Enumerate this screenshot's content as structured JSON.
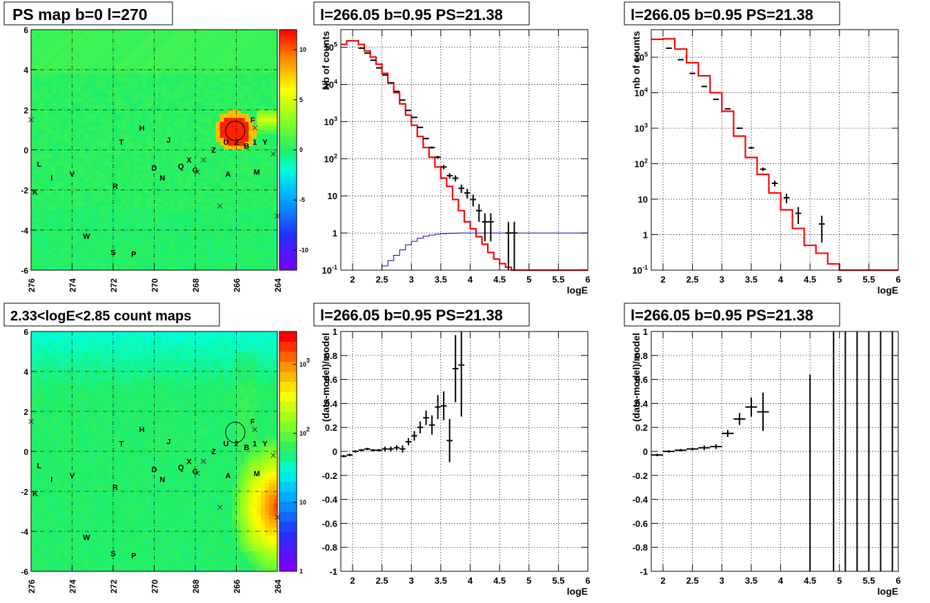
{
  "chart_data": [
    {
      "type": "heatmap",
      "title": "PS map b=0 l=270",
      "x_ticks": [
        "276",
        "274",
        "272",
        "270",
        "268",
        "266",
        "264"
      ],
      "y_ticks": [
        "6",
        "4",
        "2",
        "0",
        "-2",
        "-4",
        "-6"
      ],
      "xlim": [
        276,
        264
      ],
      "ylim": [
        -6,
        6
      ],
      "z_ticks": [
        "10",
        "5",
        "0",
        "-5",
        "-10"
      ],
      "zlim": [
        -12,
        12
      ],
      "z_scale": "linear",
      "grid": true,
      "colors": {
        "low": "#7f00ff",
        "zero": "#22ee66",
        "high": "#ff0000"
      },
      "hotspot": {
        "l": 266.05,
        "b": 0.95
      },
      "source_labels": [
        {
          "t": "L",
          "l": 275.6,
          "b": -0.7
        },
        {
          "t": "I",
          "l": 275.0,
          "b": -1.4
        },
        {
          "t": "K",
          "l": 275.8,
          "b": -2.1
        },
        {
          "t": "V",
          "l": 274.0,
          "b": -1.2
        },
        {
          "t": "T",
          "l": 271.6,
          "b": 0.4
        },
        {
          "t": "H",
          "l": 270.6,
          "b": 1.1
        },
        {
          "t": "J",
          "l": 269.3,
          "b": 0.5
        },
        {
          "t": "D",
          "l": 270.0,
          "b": -0.9
        },
        {
          "t": "N",
          "l": 269.6,
          "b": -1.4
        },
        {
          "t": "R",
          "l": 271.9,
          "b": -1.8
        },
        {
          "t": "Q",
          "l": 268.7,
          "b": -0.8
        },
        {
          "t": "X",
          "l": 268.3,
          "b": -0.5
        },
        {
          "t": "G",
          "l": 268.0,
          "b": -1.0
        },
        {
          "t": "Z",
          "l": 267.1,
          "b": 0.0
        },
        {
          "t": "U",
          "l": 266.5,
          "b": 0.4
        },
        {
          "t": "2",
          "l": 266.0,
          "b": 0.4
        },
        {
          "t": "B",
          "l": 265.5,
          "b": 0.2
        },
        {
          "t": "1",
          "l": 265.1,
          "b": 0.4
        },
        {
          "t": "Y",
          "l": 264.6,
          "b": 0.4
        },
        {
          "t": "F",
          "l": 265.2,
          "b": 1.5
        },
        {
          "t": "A",
          "l": 266.4,
          "b": -1.2
        },
        {
          "t": "M",
          "l": 265.0,
          "b": -1.1
        },
        {
          "t": "W",
          "l": 273.3,
          "b": -4.3
        },
        {
          "t": "S",
          "l": 272.0,
          "b": -5.1
        },
        {
          "t": "P",
          "l": 271.0,
          "b": -5.2
        }
      ],
      "cross_markers": [
        {
          "l": 276.0,
          "b": 1.5
        },
        {
          "l": 267.6,
          "b": -0.5
        },
        {
          "l": 267.9,
          "b": -1.1
        },
        {
          "l": 265.1,
          "b": 1.1
        },
        {
          "l": 264.2,
          "b": -0.2
        },
        {
          "l": 266.8,
          "b": -2.8
        },
        {
          "l": 264.0,
          "b": -3.3
        }
      ]
    },
    {
      "type": "line",
      "title": "l=266.05 b=0.95 PS=21.38",
      "xlabel": "logE",
      "ylabel": "Nb of counts",
      "xlim": [
        1.8,
        6
      ],
      "ylim": [
        0.1,
        300000
      ],
      "y_scale": "log",
      "x_ticks": [
        "2",
        "2.5",
        "3",
        "3.5",
        "4",
        "4.5",
        "5",
        "5.5",
        "6"
      ],
      "y_ticks": [
        "10^5",
        "10^4",
        "10^3",
        "10^2",
        "10",
        "1",
        "10^-1"
      ],
      "grid": true,
      "series": [
        {
          "color": "#ff0000",
          "kind": "step",
          "bin_width": 0.1,
          "x": [
            1.8,
            1.9,
            2.0,
            2.1,
            2.2,
            2.3,
            2.4,
            2.5,
            2.6,
            2.7,
            2.8,
            2.9,
            3.0,
            3.1,
            3.2,
            3.3,
            3.4,
            3.5,
            3.6,
            3.7,
            3.8,
            3.9,
            4.0,
            4.1,
            4.2,
            4.3,
            4.4,
            4.5,
            4.6,
            4.7,
            4.8,
            4.9,
            5.0,
            5.1,
            5.2,
            5.3,
            5.4,
            5.5,
            5.6,
            5.7,
            5.8,
            5.9
          ],
          "y": [
            120000,
            150000,
            150000,
            120000,
            80000,
            55000,
            35000,
            20000,
            11000,
            6000,
            3000,
            1500,
            800,
            400,
            200,
            110,
            60,
            30,
            18,
            8,
            4,
            2,
            1.3,
            0.8,
            0.5,
            0.3,
            0.2,
            0.15,
            0.12,
            0.1,
            0.1,
            0.1,
            0.1,
            0.1,
            0.1,
            0.1,
            0.1,
            0.1,
            0.1,
            0.1,
            0.1,
            0.1
          ]
        },
        {
          "color": "#0000cc",
          "kind": "step",
          "bin_width": 0.1,
          "x": [
            2.4,
            2.5,
            2.6,
            2.7,
            2.8,
            2.9,
            3.0,
            3.1,
            3.2,
            3.3,
            3.4,
            3.5,
            3.6,
            3.7,
            3.8,
            3.9,
            4.0,
            4.1,
            4.2,
            4.3,
            4.4,
            4.5,
            4.6,
            4.7,
            4.8,
            4.9,
            5.0,
            5.1,
            5.2,
            5.3,
            5.4,
            5.5,
            5.6,
            5.7,
            5.8,
            5.9
          ],
          "y": [
            0.1,
            0.13,
            0.18,
            0.25,
            0.35,
            0.48,
            0.6,
            0.72,
            0.82,
            0.88,
            0.93,
            0.96,
            0.98,
            0.99,
            1,
            1,
            1,
            1,
            1,
            1,
            1,
            1,
            1,
            1,
            1,
            1,
            1,
            1,
            1,
            1,
            1,
            1,
            1,
            1,
            1,
            1
          ]
        },
        {
          "color": "#000000",
          "kind": "errorbar",
          "x": [
            2.15,
            2.25,
            2.35,
            2.45,
            2.55,
            2.65,
            2.75,
            2.85,
            2.95,
            3.05,
            3.15,
            3.25,
            3.35,
            3.45,
            3.55,
            3.65,
            3.75,
            3.85,
            3.95,
            4.05,
            4.15,
            4.25,
            4.35,
            4.65,
            4.75
          ],
          "y": [
            95000,
            70000,
            45000,
            28000,
            18000,
            11000,
            6500,
            3800,
            2000,
            1300,
            700,
            350,
            200,
            110,
            60,
            35,
            30,
            16,
            12,
            8,
            4,
            2,
            2,
            1,
            1
          ],
          "err": [
            300,
            270,
            210,
            170,
            130,
            100,
            80,
            60,
            45,
            35,
            26,
            19,
            14,
            10,
            8,
            6,
            5.5,
            4,
            3.5,
            2.8,
            2,
            1.4,
            1.4,
            1,
            1
          ]
        }
      ]
    },
    {
      "type": "line",
      "title": "l=266.05 b=0.95 PS=21.38",
      "xlabel": "logE",
      "ylabel": "nb of counts",
      "xlim": [
        1.8,
        6
      ],
      "ylim": [
        0.1,
        600000
      ],
      "y_scale": "log",
      "x_ticks": [
        "2",
        "2.5",
        "3",
        "3.5",
        "4",
        "4.5",
        "5",
        "5.5",
        "6"
      ],
      "y_ticks": [
        "10^5",
        "10^4",
        "10^3",
        "10^2",
        "10",
        "1",
        "10^-1"
      ],
      "grid": true,
      "series": [
        {
          "color": "#ff0000",
          "kind": "step",
          "bin_width": 0.2,
          "x": [
            1.8,
            2.0,
            2.2,
            2.4,
            2.6,
            2.8,
            3.0,
            3.2,
            3.4,
            3.6,
            3.8,
            4.0,
            4.2,
            4.4,
            4.6,
            4.8,
            5.0,
            5.2,
            5.4,
            5.6,
            5.8
          ],
          "y": [
            320000,
            330000,
            170000,
            70000,
            30000,
            10000,
            3000,
            600,
            150,
            50,
            15,
            5,
            1.5,
            0.5,
            0.3,
            0.15,
            0.1,
            0.1,
            0.1,
            0.1,
            0.1
          ]
        },
        {
          "color": "#000000",
          "kind": "errorbar",
          "x": [
            2.1,
            2.3,
            2.5,
            2.7,
            2.9,
            3.1,
            3.3,
            3.5,
            3.7,
            3.9,
            4.1,
            4.3,
            4.7
          ],
          "y": [
            180000,
            85000,
            35000,
            15000,
            6500,
            3500,
            1000,
            280,
            70,
            28,
            11,
            4,
            2
          ],
          "err": [
            420,
            290,
            190,
            120,
            80,
            60,
            32,
            17,
            8,
            5,
            3.3,
            2,
            1.4
          ]
        }
      ]
    },
    {
      "type": "heatmap",
      "title": "2.33<logE<2.85 count maps",
      "x_ticks": [
        "276",
        "274",
        "272",
        "270",
        "268",
        "266",
        "264"
      ],
      "y_ticks": [
        "6",
        "4",
        "2",
        "0",
        "-2",
        "-4",
        "-6"
      ],
      "xlim": [
        276,
        264
      ],
      "ylim": [
        -6,
        6
      ],
      "z_ticks": [
        "10^3",
        "10^2",
        "10",
        "1"
      ],
      "zlim": [
        1,
        3000
      ],
      "z_scale": "log",
      "grid": true,
      "circle": {
        "l": 266.05,
        "b": 0.95
      },
      "bright_region": {
        "l": 264.0,
        "b": -2.8
      },
      "source_labels": "same as PS map",
      "cross_markers": "same as PS map"
    },
    {
      "type": "scatter",
      "title": "l=266.05 b=0.95 PS=21.38",
      "xlabel": "logE",
      "ylabel": "(data-model)/model",
      "xlim": [
        1.8,
        6
      ],
      "ylim": [
        -1,
        1
      ],
      "x_ticks": [
        "2",
        "2.5",
        "3",
        "3.5",
        "4",
        "4.5",
        "5",
        "5.5",
        "6"
      ],
      "y_ticks": [
        "1",
        "0.8",
        "0.6",
        "0.4",
        "0.2",
        "0",
        "-0.2",
        "-0.4",
        "-0.6",
        "-0.8",
        "-1"
      ],
      "grid": true,
      "series": [
        {
          "color": "#000000",
          "kind": "errorbar",
          "xerr": 0.05,
          "x": [
            1.85,
            1.95,
            2.05,
            2.15,
            2.25,
            2.35,
            2.45,
            2.55,
            2.65,
            2.75,
            2.85,
            2.95,
            3.05,
            3.15,
            3.25,
            3.35,
            3.45,
            3.55,
            3.65,
            3.75,
            3.85
          ],
          "y": [
            -0.04,
            -0.03,
            0.0,
            0.01,
            0.02,
            0.01,
            0.01,
            0.02,
            0.02,
            0.03,
            0.02,
            0.08,
            0.13,
            0.2,
            0.28,
            0.22,
            0.37,
            0.38,
            0.09,
            0.69,
            0.72
          ],
          "err": [
            0.01,
            0.01,
            0.01,
            0.01,
            0.01,
            0.01,
            0.01,
            0.02,
            0.02,
            0.02,
            0.03,
            0.03,
            0.04,
            0.05,
            0.06,
            0.08,
            0.1,
            0.12,
            0.18,
            0.28,
            0.43
          ]
        }
      ]
    },
    {
      "type": "scatter",
      "title": "l=266.05 b=0.95 PS=21.38",
      "xlabel": "logE",
      "ylabel": "(data-model)/model",
      "xlim": [
        1.8,
        6
      ],
      "ylim": [
        -1,
        1
      ],
      "x_ticks": [
        "2",
        "2.5",
        "3",
        "3.5",
        "4",
        "4.5",
        "5",
        "5.5",
        "6"
      ],
      "y_ticks": [
        "1",
        "0.8",
        "0.6",
        "0.4",
        "0.2",
        "0",
        "-0.2",
        "-0.4",
        "-0.6",
        "-0.8",
        "-1"
      ],
      "grid": true,
      "series": [
        {
          "color": "#000000",
          "kind": "errorbar",
          "xerr": [
            0.1,
            0.1,
            0.1,
            0.1,
            0.1,
            0.1,
            0.1,
            0.1,
            0.1,
            0.1,
            0,
            0,
            0,
            0,
            0,
            0,
            0
          ],
          "x": [
            1.9,
            2.1,
            2.3,
            2.5,
            2.7,
            2.9,
            3.1,
            3.3,
            3.5,
            3.7,
            4.5,
            4.9,
            5.1,
            5.3,
            5.5,
            5.7,
            5.9
          ],
          "y": [
            -0.03,
            0.0,
            0.01,
            0.02,
            0.03,
            0.04,
            0.15,
            0.27,
            0.37,
            0.33,
            -1,
            0,
            0,
            0,
            0,
            0,
            0
          ],
          "err": [
            0.01,
            0.01,
            0.01,
            0.01,
            0.02,
            0.02,
            0.03,
            0.05,
            0.08,
            0.16,
            1.64,
            1.2,
            1.2,
            1.2,
            1.2,
            1.2,
            1.2
          ]
        }
      ]
    }
  ]
}
